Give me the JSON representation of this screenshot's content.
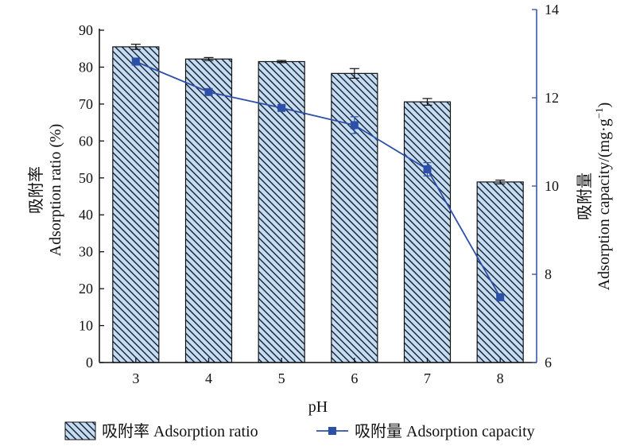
{
  "chart_data": {
    "type": "bar+line",
    "title": "",
    "categories": [
      "3",
      "4",
      "5",
      "6",
      "7",
      "8"
    ],
    "xlabel": "pH",
    "ylabel_left_cn": "吸附率",
    "ylabel_left_en": "Adsorption ratio (%)",
    "ylabel_right_cn": "吸附量",
    "ylabel_right_en": "Adsorption capacity/(mg·g",
    "ylabel_right_sup": "−1",
    "ylabel_right_close": ")",
    "ylim_left": [
      0,
      90
    ],
    "yticks_left": [
      "0",
      "10",
      "20",
      "30",
      "40",
      "50",
      "60",
      "70",
      "80",
      "90"
    ],
    "ylim_right": [
      6,
      14
    ],
    "yticks_right": [
      "6",
      "8",
      "10",
      "12",
      "14"
    ],
    "grid": false,
    "legend_position": "bottom",
    "series": [
      {
        "name": "吸附率 Adsorption ratio",
        "kind": "bar",
        "axis": "left",
        "values": [
          85.5,
          82.2,
          81.5,
          78.3,
          70.6,
          48.9
        ],
        "errors": [
          0.7,
          0.4,
          0.3,
          1.3,
          0.9,
          0.5
        ]
      },
      {
        "name": "吸附量 Adsorption capacity",
        "kind": "line",
        "axis": "right",
        "values": [
          12.82,
          12.13,
          11.77,
          11.38,
          10.38,
          7.48
        ],
        "errors": [
          0.08,
          0.06,
          0.05,
          0.19,
          0.15,
          0.05
        ]
      }
    ],
    "colors": {
      "bar_fill": "#c6dcef",
      "bar_hatch": "#1c2a44",
      "bar_edge": "#111111",
      "line": "#2c4fa8",
      "right_axis": "#2c4fa8",
      "left_axis": "#111111"
    }
  }
}
